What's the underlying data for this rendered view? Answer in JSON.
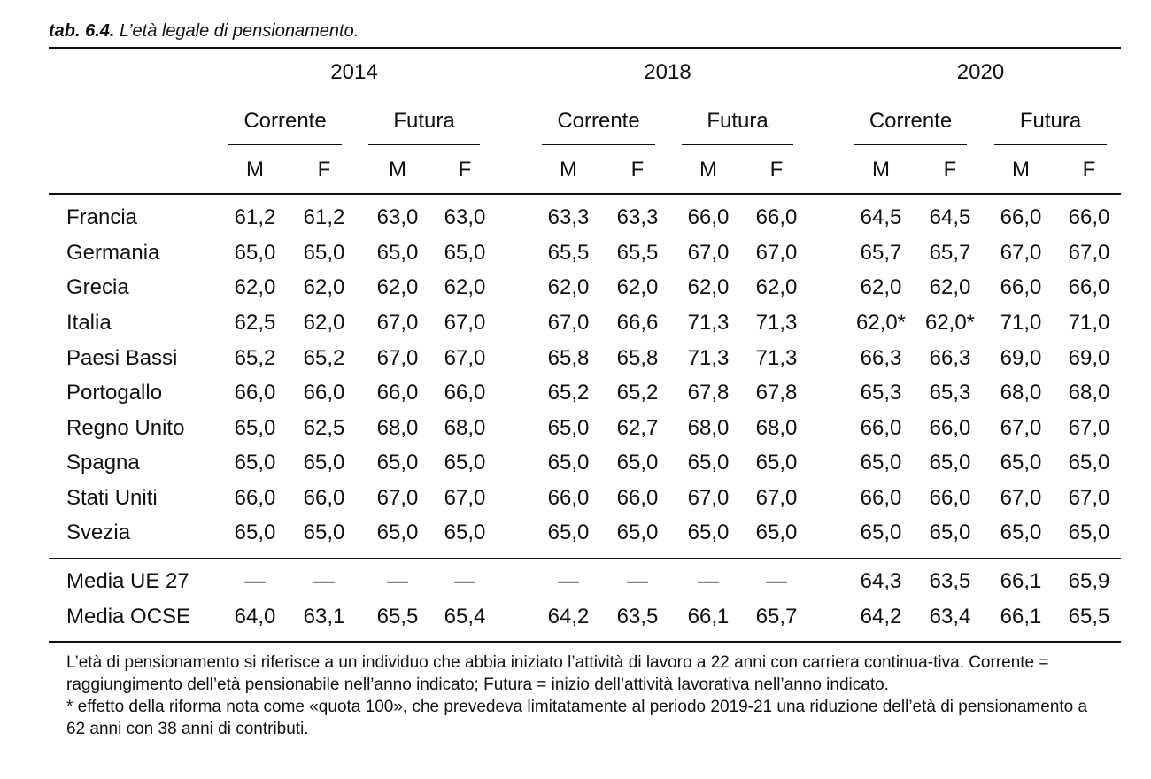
{
  "caption": {
    "number": "tab. 6.4.",
    "title": "L’età legale di pensionamento."
  },
  "years": [
    "2014",
    "2018",
    "2020"
  ],
  "subheaders": [
    "Corrente",
    "Futura"
  ],
  "sexes": [
    "M",
    "F"
  ],
  "rows": [
    {
      "label": "Francia",
      "values": [
        "61,2",
        "61,2",
        "63,0",
        "63,0",
        "63,3",
        "63,3",
        "66,0",
        "66,0",
        "64,5",
        "64,5",
        "66,0",
        "66,0"
      ]
    },
    {
      "label": "Germania",
      "values": [
        "65,0",
        "65,0",
        "65,0",
        "65,0",
        "65,5",
        "65,5",
        "67,0",
        "67,0",
        "65,7",
        "65,7",
        "67,0",
        "67,0"
      ]
    },
    {
      "label": "Grecia",
      "values": [
        "62,0",
        "62,0",
        "62,0",
        "62,0",
        "62,0",
        "62,0",
        "62,0",
        "62,0",
        "62,0",
        "62,0",
        "66,0",
        "66,0"
      ]
    },
    {
      "label": "Italia",
      "values": [
        "62,5",
        "62,0",
        "67,0",
        "67,0",
        "67,0",
        "66,6",
        "71,3",
        "71,3",
        "62,0*",
        "62,0*",
        "71,0",
        "71,0"
      ]
    },
    {
      "label": "Paesi Bassi",
      "values": [
        "65,2",
        "65,2",
        "67,0",
        "67,0",
        "65,8",
        "65,8",
        "71,3",
        "71,3",
        "66,3",
        "66,3",
        "69,0",
        "69,0"
      ]
    },
    {
      "label": "Portogallo",
      "values": [
        "66,0",
        "66,0",
        "66,0",
        "66,0",
        "65,2",
        "65,2",
        "67,8",
        "67,8",
        "65,3",
        "65,3",
        "68,0",
        "68,0"
      ]
    },
    {
      "label": "Regno Unito",
      "values": [
        "65,0",
        "62,5",
        "68,0",
        "68,0",
        "65,0",
        "62,7",
        "68,0",
        "68,0",
        "66,0",
        "66,0",
        "67,0",
        "67,0"
      ]
    },
    {
      "label": "Spagna",
      "values": [
        "65,0",
        "65,0",
        "65,0",
        "65,0",
        "65,0",
        "65,0",
        "65,0",
        "65,0",
        "65,0",
        "65,0",
        "65,0",
        "65,0"
      ]
    },
    {
      "label": "Stati Uniti",
      "values": [
        "66,0",
        "66,0",
        "67,0",
        "67,0",
        "66,0",
        "66,0",
        "67,0",
        "67,0",
        "66,0",
        "66,0",
        "67,0",
        "67,0"
      ]
    },
    {
      "label": "Svezia",
      "values": [
        "65,0",
        "65,0",
        "65,0",
        "65,0",
        "65,0",
        "65,0",
        "65,0",
        "65,0",
        "65,0",
        "65,0",
        "65,0",
        "65,0"
      ]
    }
  ],
  "summary_rows": [
    {
      "label": "Media UE 27",
      "values": [
        "—",
        "—",
        "—",
        "—",
        "—",
        "—",
        "—",
        "—",
        "64,3",
        "63,5",
        "66,1",
        "65,9"
      ]
    },
    {
      "label": "Media OCSE",
      "values": [
        "64,0",
        "63,1",
        "65,5",
        "65,4",
        "64,2",
        "63,5",
        "66,1",
        "65,7",
        "64,2",
        "63,4",
        "66,1",
        "65,5"
      ]
    }
  ],
  "notes": [
    "L’età di pensionamento si riferisce a un individuo che abbia iniziato l’attività di lavoro a 22 anni con carriera continua-tiva. Corrente = raggiungimento dell’età pensionabile nell’anno indicato; Futura = inizio dell’attività lavorativa nell’anno indicato.",
    "* effetto della riforma nota come «quota 100», che prevedeva limitatamente al periodo 2019-21 una riduzione dell’età di pensionamento a 62 anni con 38 anni di contributi."
  ]
}
